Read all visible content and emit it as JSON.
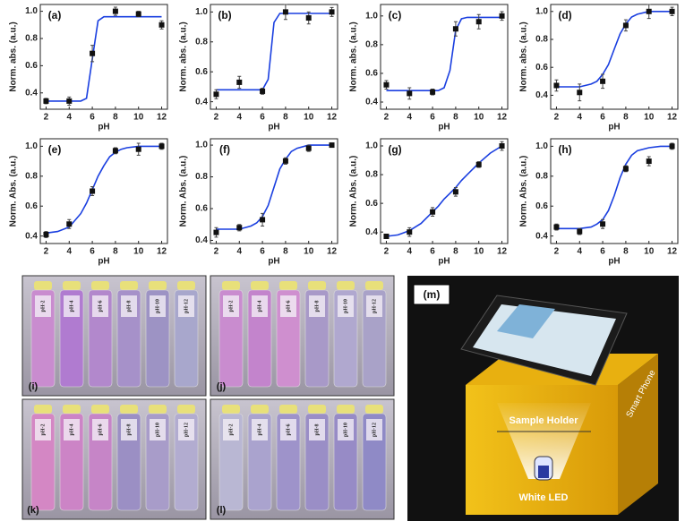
{
  "chart_data": [
    {
      "type": "scatter",
      "label": "(a)",
      "x_label": "pH",
      "y_label": "Norm. abs. (a.u.)",
      "x": [
        2,
        4,
        6,
        8,
        10,
        12
      ],
      "series": [
        {
          "color": "#111111",
          "marker": "square",
          "values": [
            0.34,
            0.34,
            0.69,
            1.0,
            0.98,
            0.9
          ],
          "errors": [
            0.02,
            0.03,
            0.06,
            0.03,
            0.02,
            0.03
          ]
        }
      ],
      "fit": {
        "color": "#1a3fe0",
        "x": [
          2,
          3,
          4,
          5,
          5.5,
          6,
          6.5,
          7,
          7.5,
          8,
          8.5,
          9,
          10,
          11,
          12
        ],
        "values": [
          0.34,
          0.34,
          0.34,
          0.34,
          0.36,
          0.65,
          0.93,
          0.96,
          0.96,
          0.96,
          0.96,
          0.96,
          0.96,
          0.96,
          0.96
        ]
      },
      "xlim": [
        1.5,
        12.5
      ],
      "ylim": [
        0.28,
        1.05
      ],
      "xticks": [
        2,
        4,
        6,
        8,
        10,
        12
      ],
      "yticks": [
        0.4,
        0.6,
        0.8,
        {
          "value": 1.0,
          "label": "1.0"
        }
      ]
    },
    {
      "type": "scatter",
      "label": "(b)",
      "x_label": "pH",
      "y_label": "Norm. abs. (a.u.)",
      "x": [
        2,
        4,
        6,
        8,
        10,
        12
      ],
      "series": [
        {
          "color": "#111111",
          "marker": "square",
          "values": [
            0.45,
            0.53,
            0.47,
            1.0,
            0.96,
            1.0
          ],
          "errors": [
            0.03,
            0.04,
            0.02,
            0.05,
            0.04,
            0.03
          ]
        }
      ],
      "fit": {
        "color": "#1a3fe0",
        "x": [
          2,
          3,
          4,
          5,
          5.5,
          6,
          6.5,
          7,
          7.5,
          8,
          8.5,
          9,
          10,
          11,
          12
        ],
        "values": [
          0.48,
          0.48,
          0.48,
          0.48,
          0.48,
          0.48,
          0.55,
          0.93,
          0.99,
          0.99,
          0.99,
          0.99,
          0.99,
          0.99,
          0.99
        ]
      },
      "xlim": [
        1.5,
        12.5
      ],
      "ylim": [
        0.35,
        1.05
      ],
      "xticks": [
        2,
        4,
        6,
        8,
        10,
        12
      ],
      "yticks": [
        0.4,
        0.6,
        0.8,
        {
          "value": 1.0,
          "label": "1.0"
        }
      ]
    },
    {
      "type": "scatter",
      "label": "(c)",
      "x_label": "pH",
      "y_label": "Norm. abs. (a.u.)",
      "x": [
        2,
        4,
        6,
        8,
        10,
        12
      ],
      "series": [
        {
          "color": "#111111",
          "marker": "square",
          "values": [
            0.52,
            0.46,
            0.47,
            0.91,
            0.96,
            1.0
          ],
          "errors": [
            0.03,
            0.04,
            0.02,
            0.05,
            0.05,
            0.03
          ]
        }
      ],
      "fit": {
        "color": "#1a3fe0",
        "x": [
          2,
          3,
          4,
          5,
          5.5,
          6,
          6.5,
          7,
          7.5,
          8,
          8.5,
          9,
          10,
          11,
          12
        ],
        "values": [
          0.48,
          0.48,
          0.48,
          0.48,
          0.48,
          0.48,
          0.48,
          0.5,
          0.62,
          0.9,
          0.98,
          0.99,
          0.99,
          0.99,
          0.99
        ]
      },
      "xlim": [
        1.5,
        12.5
      ],
      "ylim": [
        0.35,
        1.08
      ],
      "xticks": [
        2,
        4,
        6,
        8,
        10,
        12
      ],
      "yticks": [
        0.4,
        0.6,
        0.8,
        {
          "value": 1.0,
          "label": "1.0"
        }
      ]
    },
    {
      "type": "scatter",
      "label": "(d)",
      "x_label": "pH",
      "y_label": "Norm. abs. (a.u.)",
      "x": [
        2,
        4,
        6,
        8,
        10,
        12
      ],
      "series": [
        {
          "color": "#111111",
          "marker": "square",
          "values": [
            0.47,
            0.42,
            0.5,
            0.9,
            1.0,
            1.0
          ],
          "errors": [
            0.04,
            0.06,
            0.05,
            0.04,
            0.05,
            0.03
          ]
        }
      ],
      "fit": {
        "color": "#1a3fe0",
        "x": [
          2,
          3,
          4,
          5,
          5.5,
          6,
          6.5,
          7,
          7.5,
          8,
          8.5,
          9,
          10,
          11,
          12
        ],
        "values": [
          0.46,
          0.46,
          0.46,
          0.48,
          0.5,
          0.55,
          0.62,
          0.73,
          0.84,
          0.91,
          0.96,
          0.98,
          1.0,
          1.0,
          1.0
        ]
      },
      "xlim": [
        1.5,
        12.5
      ],
      "ylim": [
        0.3,
        1.05
      ],
      "xticks": [
        2,
        4,
        6,
        8,
        10,
        12
      ],
      "yticks": [
        0.4,
        0.6,
        0.8,
        {
          "value": 1.0,
          "label": "1.0"
        }
      ]
    },
    {
      "type": "scatter",
      "label": "(e)",
      "x_label": "pH",
      "y_label": "Norm. Abs. (a.u.)",
      "x": [
        2,
        4,
        6,
        8,
        10,
        12
      ],
      "series": [
        {
          "color": "#111111",
          "marker": "square",
          "values": [
            0.41,
            0.48,
            0.7,
            0.97,
            0.98,
            1.0
          ],
          "errors": [
            0.02,
            0.03,
            0.03,
            0.02,
            0.04,
            0.02
          ]
        }
      ],
      "fit": {
        "color": "#1a3fe0",
        "x": [
          2,
          3,
          4,
          5,
          5.5,
          6,
          6.5,
          7,
          7.5,
          8,
          8.5,
          9,
          10,
          11,
          12
        ],
        "values": [
          0.42,
          0.43,
          0.46,
          0.55,
          0.62,
          0.71,
          0.8,
          0.87,
          0.93,
          0.96,
          0.98,
          0.99,
          1.0,
          1.0,
          1.0
        ]
      },
      "xlim": [
        1.5,
        12.5
      ],
      "ylim": [
        0.35,
        1.05
      ],
      "xticks": [
        2,
        4,
        6,
        8,
        10,
        12
      ],
      "yticks": [
        0.4,
        0.6,
        0.8,
        {
          "value": 1.0,
          "label": "1.0"
        }
      ]
    },
    {
      "type": "scatter",
      "label": "(f)",
      "x_label": "pH",
      "y_label": "Norm. Abs. (a.u.)",
      "x": [
        2,
        4,
        6,
        8,
        10,
        12
      ],
      "series": [
        {
          "color": "#111111",
          "marker": "square",
          "values": [
            0.45,
            0.48,
            0.53,
            0.9,
            0.98,
            1.0
          ],
          "errors": [
            0.03,
            0.02,
            0.04,
            0.02,
            0.02,
            0.01
          ]
        }
      ],
      "fit": {
        "color": "#1a3fe0",
        "x": [
          2,
          3,
          4,
          5,
          5.5,
          6,
          6.5,
          7,
          7.5,
          8,
          8.5,
          9,
          10,
          11,
          12
        ],
        "values": [
          0.47,
          0.47,
          0.47,
          0.49,
          0.51,
          0.55,
          0.62,
          0.735,
          0.85,
          0.91,
          0.96,
          0.98,
          1.0,
          1.0,
          1.0
        ]
      },
      "xlim": [
        1.5,
        12.5
      ],
      "ylim": [
        0.38,
        1.04
      ],
      "xticks": [
        2,
        4,
        6,
        8,
        10,
        12
      ],
      "yticks": [
        0.4,
        0.6,
        0.8,
        {
          "value": 1.0,
          "label": "1.0"
        }
      ]
    },
    {
      "type": "scatter",
      "label": "(g)",
      "x_label": "pH",
      "y_label": "Norm. Abs. (a.u.)",
      "x": [
        2,
        4,
        6,
        8,
        10,
        12
      ],
      "series": [
        {
          "color": "#111111",
          "marker": "square",
          "values": [
            0.37,
            0.4,
            0.54,
            0.68,
            0.87,
            1.0
          ],
          "errors": [
            0.01,
            0.03,
            0.03,
            0.03,
            0.02,
            0.03
          ]
        }
      ],
      "fit": {
        "color": "#1a3fe0",
        "x": [
          2,
          3,
          4,
          5,
          5.5,
          6,
          6.5,
          7,
          7.5,
          8,
          8.5,
          9,
          10,
          11,
          12
        ],
        "values": [
          0.37,
          0.38,
          0.41,
          0.46,
          0.5,
          0.54,
          0.58,
          0.63,
          0.67,
          0.71,
          0.76,
          0.8,
          0.88,
          0.95,
          1.0
        ]
      },
      "xlim": [
        1.5,
        12.5
      ],
      "ylim": [
        0.32,
        1.05
      ],
      "xticks": [
        2,
        4,
        6,
        8,
        10,
        12
      ],
      "yticks": [
        0.4,
        0.6,
        0.8,
        {
          "value": 1.0,
          "label": "1.0"
        }
      ]
    },
    {
      "type": "scatter",
      "label": "(h)",
      "x_label": "pH",
      "y_label": "Norm. Abs. (a.u.)",
      "x": [
        2,
        4,
        6,
        8,
        10,
        12
      ],
      "series": [
        {
          "color": "#111111",
          "marker": "square",
          "values": [
            0.46,
            0.43,
            0.48,
            0.85,
            0.9,
            1.0
          ],
          "errors": [
            0.02,
            0.02,
            0.03,
            0.02,
            0.03,
            0.02
          ]
        }
      ],
      "fit": {
        "color": "#1a3fe0",
        "x": [
          2,
          3,
          4,
          5,
          5.5,
          6,
          6.5,
          7,
          7.5,
          8,
          8.5,
          9,
          10,
          11,
          12
        ],
        "values": [
          0.45,
          0.45,
          0.45,
          0.46,
          0.48,
          0.51,
          0.57,
          0.67,
          0.79,
          0.88,
          0.94,
          0.97,
          0.99,
          1.0,
          1.0
        ]
      },
      "xlim": [
        1.5,
        12.5
      ],
      "ylim": [
        0.35,
        1.05
      ],
      "xticks": [
        2,
        4,
        6,
        8,
        10,
        12
      ],
      "yticks": [
        0.4,
        0.6,
        0.8,
        {
          "value": 1.0,
          "label": "1.0"
        }
      ]
    }
  ],
  "photos": [
    {
      "label": "(i)",
      "vials": [
        "pH-2",
        "pH-4",
        "pH-6",
        "pH-8",
        "pH-10",
        "pH-12"
      ]
    },
    {
      "label": "(j)",
      "vials": [
        "pH-2",
        "pH-4",
        "pH-6",
        "pH-8",
        "pH-10",
        "pH-12"
      ]
    },
    {
      "label": "(k)",
      "vials": [
        "pH-2",
        "pH-4",
        "pH-6",
        "pH-8",
        "pH-10",
        "pH-12"
      ]
    },
    {
      "label": "(l)",
      "vials": [
        "pH-2",
        "pH-4",
        "pH-6",
        "pH-8",
        "pH-10",
        "pH-12"
      ]
    }
  ],
  "setup": {
    "label": "(m)",
    "sample_holder": "Sample Holder",
    "led": "White LED",
    "phone": "Smart Phone"
  }
}
